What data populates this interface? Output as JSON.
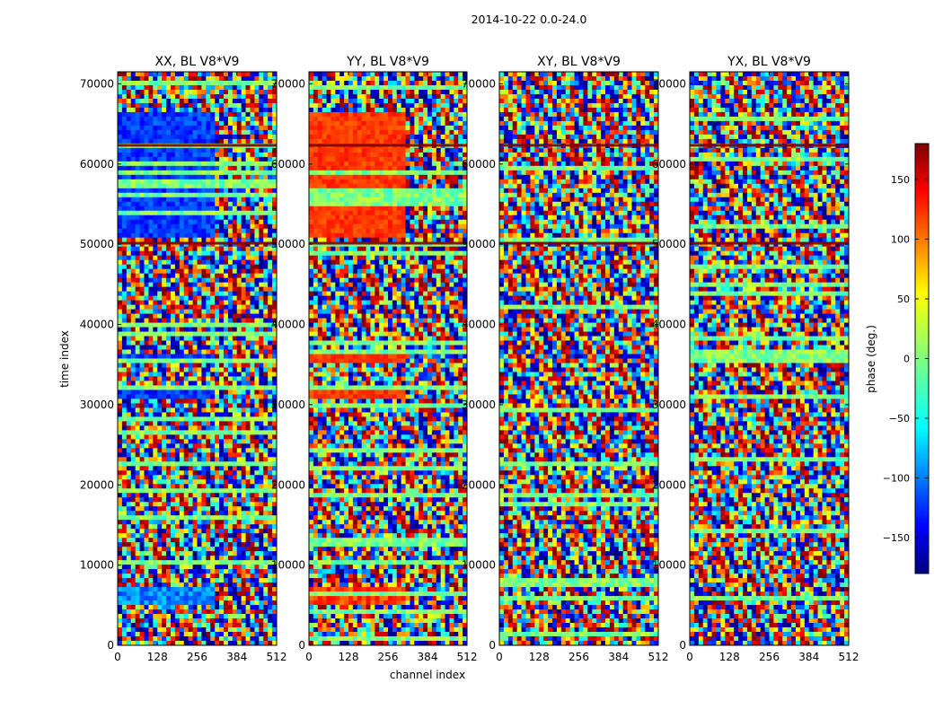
{
  "suptitle": "2014-10-22 0.0-24.0",
  "chart_data": {
    "type": "heatmap",
    "xlabel": "channel index",
    "ylabel": "time index",
    "xlim": [
      0,
      512
    ],
    "ylim": [
      0,
      71500
    ],
    "xticks": [
      0,
      128,
      256,
      384,
      512
    ],
    "yticks": [
      0,
      10000,
      20000,
      30000,
      40000,
      50000,
      60000,
      70000
    ],
    "colormap": "jet",
    "panels": [
      {
        "title": "XX, BL V8*V9",
        "base_color": "blue"
      },
      {
        "title": "YY, BL V8*V9",
        "base_color": "orange"
      },
      {
        "title": "XY, BL V8*V9",
        "base_color": "mixed"
      },
      {
        "title": "YX, BL V8*V9",
        "base_color": "mixed"
      }
    ],
    "colorbar": {
      "label": "phase (deg.)",
      "range": [
        -180,
        180
      ],
      "ticks": [
        -150,
        -100,
        -50,
        0,
        50,
        100,
        150
      ],
      "tick_labels": [
        "−150",
        "−100",
        "−50",
        "0",
        "50",
        "100",
        "150"
      ]
    }
  }
}
